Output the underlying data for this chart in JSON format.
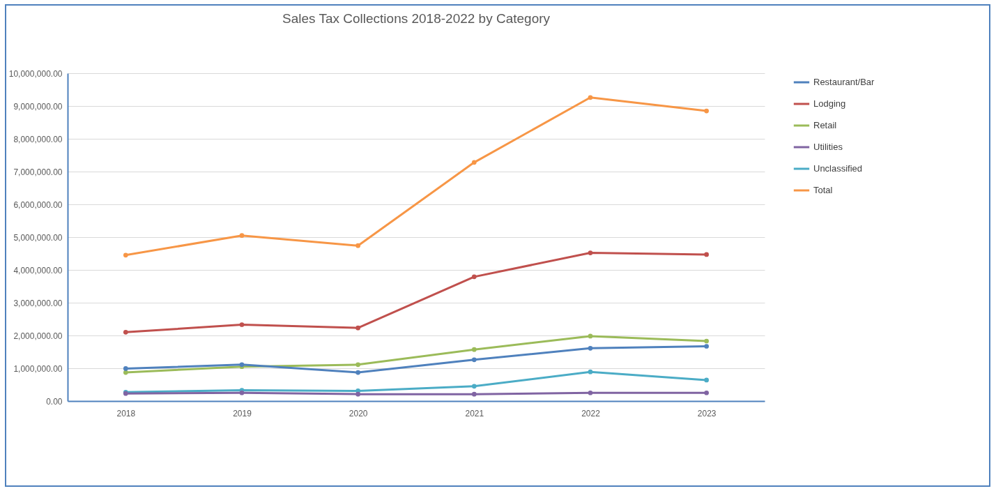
{
  "chart_data": {
    "type": "line",
    "title": "Sales Tax Collections  2018-2022 by Category",
    "categories": [
      "2018",
      "2019",
      "2020",
      "2021",
      "2022",
      "2023"
    ],
    "series": [
      {
        "name": "Restaurant/Bar",
        "color": "#4f81bd",
        "values": [
          990000,
          1110000,
          870000,
          1260000,
          1610000,
          1670000
        ]
      },
      {
        "name": "Lodging",
        "color": "#c0504d",
        "values": [
          2100000,
          2330000,
          2230000,
          3790000,
          4520000,
          4470000
        ]
      },
      {
        "name": "Retail",
        "color": "#9bbb59",
        "values": [
          870000,
          1050000,
          1110000,
          1570000,
          1980000,
          1830000
        ]
      },
      {
        "name": "Utilities",
        "color": "#8064a2",
        "values": [
          230000,
          250000,
          210000,
          210000,
          250000,
          250000
        ]
      },
      {
        "name": "Unclassified",
        "color": "#4bacc6",
        "values": [
          270000,
          330000,
          310000,
          450000,
          890000,
          640000
        ]
      },
      {
        "name": "Total",
        "color": "#f79646",
        "values": [
          4450000,
          5050000,
          4740000,
          7280000,
          9260000,
          8850000
        ]
      }
    ],
    "ylim": [
      0,
      10000000
    ],
    "yticks": [
      {
        "value": 0,
        "label": "0.00"
      },
      {
        "value": 1000000,
        "label": "1,000,000.00"
      },
      {
        "value": 2000000,
        "label": "2,000,000.00"
      },
      {
        "value": 3000000,
        "label": "3,000,000.00"
      },
      {
        "value": 4000000,
        "label": "4,000,000.00"
      },
      {
        "value": 5000000,
        "label": "5,000,000.00"
      },
      {
        "value": 6000000,
        "label": "6,000,000.00"
      },
      {
        "value": 7000000,
        "label": "7,000,000.00"
      },
      {
        "value": 8000000,
        "label": "8,000,000.00"
      },
      {
        "value": 9000000,
        "label": "9,000,000.00"
      },
      {
        "value": 10000000,
        "label": "10,000,000.00"
      }
    ],
    "grid": "y",
    "legend": "right",
    "marker": "circle",
    "line_style": "solid"
  }
}
